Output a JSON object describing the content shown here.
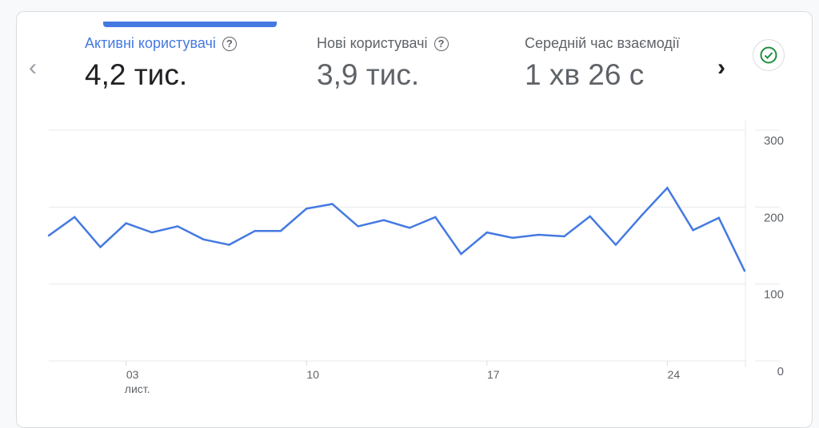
{
  "metrics": [
    {
      "label": "Активні користувачі",
      "value": "4,2 тис.",
      "active": true,
      "help_icon": "help-circle-icon"
    },
    {
      "label": "Нові користувачі",
      "value": "3,9 тис.",
      "active": false,
      "help_icon": "help-circle-icon"
    },
    {
      "label": "Середній час взаємодії",
      "value": "1 хв 26 с",
      "active": false
    }
  ],
  "nav": {
    "prev_icon": "‹",
    "next_icon": "›"
  },
  "status_icon": "check-circle-icon",
  "colors": {
    "accent": "#4479e1",
    "line": "#4479e1",
    "check": "#1e8e3e"
  },
  "chart_data": {
    "type": "line",
    "x_ticks": [
      {
        "index": 3,
        "label": "03",
        "sublabel": "лист."
      },
      {
        "index": 10,
        "label": "10"
      },
      {
        "index": 17,
        "label": "17"
      },
      {
        "index": 24,
        "label": "24"
      }
    ],
    "y_ticks": [
      "0",
      "100",
      "200",
      "300"
    ],
    "ylim": [
      0,
      300
    ],
    "y_axis_position": "right",
    "grid": true,
    "series": [
      {
        "values": [
          163,
          187,
          148,
          179,
          167,
          175,
          158,
          151,
          169,
          169,
          198,
          204,
          175,
          183,
          173,
          187,
          139,
          167,
          160,
          164,
          162,
          188,
          151,
          189,
          225,
          170,
          186,
          117
        ]
      }
    ]
  }
}
